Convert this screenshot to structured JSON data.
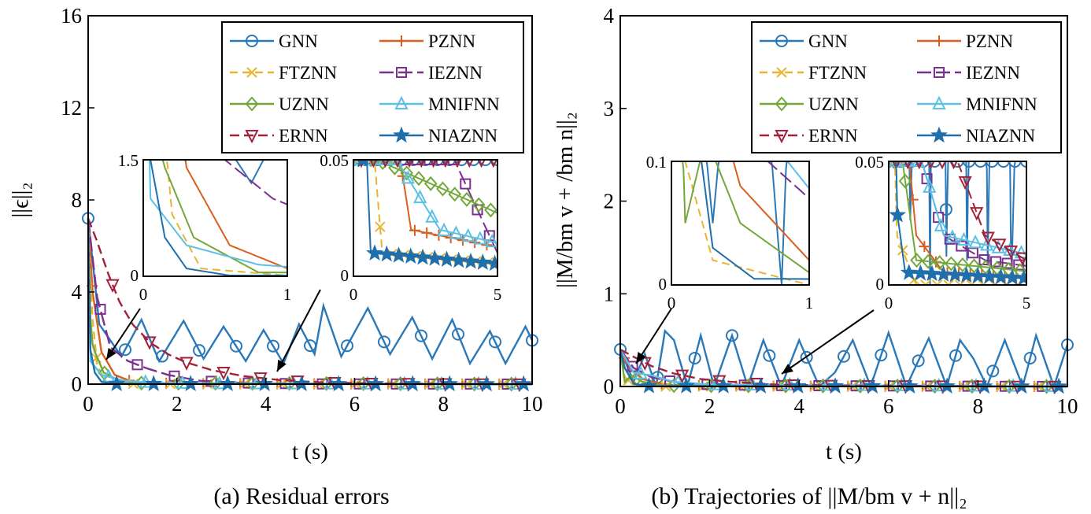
{
  "colors": {
    "GNN": "#2a78b8",
    "PZNN": "#d95f1e",
    "FTZNN": "#e8b530",
    "IEZNN": "#7b2f8e",
    "UZNN": "#72a83a",
    "MNIFNN": "#5cc0e6",
    "ERNN": "#a3223a",
    "NIAZNN": "#1f6fad"
  },
  "markers": {
    "GNN": "circle-icon",
    "PZNN": "plus-icon",
    "FTZNN": "cross-icon",
    "IEZNN": "square-icon",
    "UZNN": "diamond-icon",
    "MNIFNN": "triangle-up-icon",
    "ERNN": "triangle-down-icon",
    "NIAZNN": "star-icon"
  },
  "chart_data": [
    {
      "type": "line",
      "caption": "(a) Residual errors",
      "xlabel": "t (s)",
      "ylabel": "||ϵ||₂",
      "xlim": [
        0,
        10
      ],
      "ylim": [
        0,
        16
      ],
      "xticks": [
        "0",
        "2",
        "4",
        "6",
        "8",
        "10"
      ],
      "yticks": [
        "0",
        "4",
        "8",
        "12",
        "16"
      ],
      "legend": [
        "GNN",
        "PZNN",
        "FTZNN",
        "IEZNN",
        "UZNN",
        "MNIFNN",
        "ERNN",
        "NIAZNN"
      ],
      "legend_position": "top-right",
      "initial_value": 7.2,
      "series": [
        {
          "name": "GNN",
          "points": [
            [
              0,
              7.2
            ],
            [
              0.25,
              2.6
            ],
            [
              0.75,
              1.2
            ],
            [
              1.2,
              2.8
            ],
            [
              1.6,
              1.0
            ],
            [
              2.15,
              2.75
            ],
            [
              2.6,
              1.1
            ],
            [
              3.05,
              2.5
            ],
            [
              3.55,
              1.0
            ],
            [
              3.95,
              2.35
            ],
            [
              4.4,
              0.9
            ],
            [
              4.75,
              2.6
            ],
            [
              5.1,
              1.3
            ],
            [
              5.3,
              3.4
            ],
            [
              5.7,
              1.2
            ],
            [
              6.3,
              3.3
            ],
            [
              6.8,
              1.3
            ],
            [
              7.3,
              2.9
            ],
            [
              7.75,
              1.1
            ],
            [
              8.2,
              2.8
            ],
            [
              8.6,
              0.9
            ],
            [
              9.05,
              2.3
            ],
            [
              9.4,
              0.9
            ],
            [
              9.85,
              2.5
            ],
            [
              10,
              1.9
            ]
          ]
        },
        {
          "name": "PZNN",
          "points": [
            [
              0,
              7.2
            ],
            [
              0.1,
              4.0
            ],
            [
              0.3,
              1.4
            ],
            [
              0.6,
              0.4
            ],
            [
              1.0,
              0.1
            ],
            [
              2,
              0.02
            ],
            [
              10,
              0
            ]
          ]
        },
        {
          "name": "FTZNN",
          "points": [
            [
              0,
              7.2
            ],
            [
              0.08,
              3.2
            ],
            [
              0.2,
              0.8
            ],
            [
              0.4,
              0.1
            ],
            [
              1,
              0.01
            ],
            [
              10,
              0
            ]
          ]
        },
        {
          "name": "IEZNN",
          "points": [
            [
              0,
              7.2
            ],
            [
              0.2,
              3.8
            ],
            [
              0.5,
              1.6
            ],
            [
              0.9,
              1.0
            ],
            [
              1.3,
              0.7
            ],
            [
              1.8,
              0.4
            ],
            [
              2.5,
              0.15
            ],
            [
              3.5,
              0.05
            ],
            [
              5,
              0.01
            ],
            [
              10,
              0
            ]
          ]
        },
        {
          "name": "UZNN",
          "points": [
            [
              0,
              7.2
            ],
            [
              0.06,
              2.0
            ],
            [
              0.15,
              1.4
            ],
            [
              0.35,
              0.5
            ],
            [
              0.8,
              0.05
            ],
            [
              10,
              0
            ]
          ]
        },
        {
          "name": "MNIFNN",
          "points": [
            [
              0,
              7.2
            ],
            [
              0.05,
              1.0
            ],
            [
              0.3,
              0.4
            ],
            [
              0.8,
              0.15
            ],
            [
              1.5,
              0.05
            ],
            [
              3,
              0.02
            ],
            [
              10,
              0
            ]
          ]
        },
        {
          "name": "ERNN",
          "points": [
            [
              0,
              7.2
            ],
            [
              0.2,
              6.2
            ],
            [
              0.45,
              4.8
            ],
            [
              0.7,
              3.6
            ],
            [
              1.0,
              2.6
            ],
            [
              1.4,
              1.8
            ],
            [
              1.8,
              1.3
            ],
            [
              2.2,
              0.95
            ],
            [
              2.8,
              0.6
            ],
            [
              3.5,
              0.35
            ],
            [
              4.3,
              0.18
            ],
            [
              5.2,
              0.08
            ],
            [
              6.5,
              0.03
            ],
            [
              10,
              0
            ]
          ]
        },
        {
          "name": "NIAZNN",
          "points": [
            [
              0,
              7.2
            ],
            [
              0.05,
              1.5
            ],
            [
              0.15,
              0.5
            ],
            [
              0.3,
              0.1
            ],
            [
              0.6,
              0.01
            ],
            [
              10,
              0
            ]
          ]
        }
      ],
      "insets": [
        {
          "xlim": [
            0,
            1
          ],
          "ylim": [
            0,
            1.5
          ],
          "xticks": [
            "0",
            "1"
          ],
          "yticks": [
            "0",
            "1.5"
          ]
        },
        {
          "xlim": [
            0,
            5
          ],
          "ylim": [
            0,
            0.05
          ],
          "xticks": [
            "0",
            "5"
          ],
          "yticks": [
            "0",
            "0.05"
          ]
        }
      ]
    },
    {
      "type": "line",
      "caption": "(b) Trajectories of ||M/bm v + n||₂",
      "xlabel": "t (s)",
      "ylabel": "||M/bm v + /bm n||₂",
      "xlim": [
        0,
        10
      ],
      "ylim": [
        0,
        4
      ],
      "xticks": [
        "0",
        "2",
        "4",
        "6",
        "8",
        "10"
      ],
      "yticks": [
        "0",
        "1",
        "2",
        "3",
        "4"
      ],
      "legend": [
        "GNN",
        "PZNN",
        "FTZNN",
        "IEZNN",
        "UZNN",
        "MNIFNN",
        "ERNN",
        "NIAZNN"
      ],
      "legend_position": "top-right",
      "initial_value": 0.4,
      "series": [
        {
          "name": "GNN",
          "points": [
            [
              0,
              0.4
            ],
            [
              0.3,
              0.05
            ],
            [
              0.55,
              0.35
            ],
            [
              0.8,
              0.0
            ],
            [
              1.0,
              0.6
            ],
            [
              1.2,
              0.5
            ],
            [
              1.5,
              0.0
            ],
            [
              1.8,
              0.55
            ],
            [
              2.1,
              0.0
            ],
            [
              2.5,
              0.55
            ],
            [
              2.85,
              0.0
            ],
            [
              3.2,
              0.5
            ],
            [
              3.6,
              0.0
            ],
            [
              4.0,
              0.5
            ],
            [
              4.45,
              0.0
            ],
            [
              4.8,
              0.15
            ],
            [
              5.2,
              0.5
            ],
            [
              5.6,
              0.0
            ],
            [
              6.0,
              0.58
            ],
            [
              6.4,
              0.0
            ],
            [
              6.9,
              0.52
            ],
            [
              7.3,
              0.0
            ],
            [
              7.6,
              0.5
            ],
            [
              7.9,
              0.3
            ],
            [
              8.2,
              0.0
            ],
            [
              8.6,
              0.5
            ],
            [
              9.0,
              0.0
            ],
            [
              9.3,
              0.55
            ],
            [
              9.7,
              0.0
            ],
            [
              10,
              0.45
            ]
          ]
        },
        {
          "name": "PZNN",
          "points": [
            [
              0,
              0.4
            ],
            [
              0.2,
              0.2
            ],
            [
              0.5,
              0.08
            ],
            [
              1,
              0.02
            ],
            [
              2,
              0.005
            ],
            [
              10,
              0
            ]
          ]
        },
        {
          "name": "FTZNN",
          "points": [
            [
              0,
              0.4
            ],
            [
              0.1,
              0.1
            ],
            [
              0.3,
              0.02
            ],
            [
              1,
              0
            ],
            [
              10,
              0
            ]
          ]
        },
        {
          "name": "IEZNN",
          "points": [
            [
              0,
              0.4
            ],
            [
              0.3,
              0.2
            ],
            [
              0.7,
              0.1
            ],
            [
              1.2,
              0.05
            ],
            [
              2,
              0.02
            ],
            [
              3.5,
              0.01
            ],
            [
              10,
              0
            ]
          ]
        },
        {
          "name": "UZNN",
          "points": [
            [
              0,
              0.4
            ],
            [
              0.1,
              0.05
            ],
            [
              0.25,
              0.12
            ],
            [
              0.5,
              0.05
            ],
            [
              1,
              0.01
            ],
            [
              10,
              0
            ]
          ]
        },
        {
          "name": "MNIFNN",
          "points": [
            [
              0,
              0.4
            ],
            [
              0.3,
              0.15
            ],
            [
              0.7,
              0.12
            ],
            [
              1.2,
              0.05
            ],
            [
              2,
              0.02
            ],
            [
              10,
              0
            ]
          ]
        },
        {
          "name": "ERNN",
          "points": [
            [
              0,
              0.4
            ],
            [
              0.3,
              0.32
            ],
            [
              0.7,
              0.22
            ],
            [
              1.2,
              0.14
            ],
            [
              1.8,
              0.08
            ],
            [
              2.5,
              0.05
            ],
            [
              3.5,
              0.02
            ],
            [
              5,
              0.01
            ],
            [
              10,
              0
            ]
          ]
        },
        {
          "name": "NIAZNN",
          "points": [
            [
              0,
              0.4
            ],
            [
              0.1,
              0.2
            ],
            [
              0.3,
              0.03
            ],
            [
              0.6,
              0.005
            ],
            [
              10,
              0
            ]
          ]
        }
      ],
      "insets": [
        {
          "xlim": [
            0,
            1
          ],
          "ylim": [
            0,
            0.1
          ],
          "xticks": [
            "0",
            "1"
          ],
          "yticks": [
            "0",
            "0.1"
          ]
        },
        {
          "xlim": [
            0,
            5
          ],
          "ylim": [
            0,
            0.05
          ],
          "xticks": [
            "0",
            "5"
          ],
          "yticks": [
            "0",
            "0.05"
          ]
        }
      ]
    }
  ]
}
